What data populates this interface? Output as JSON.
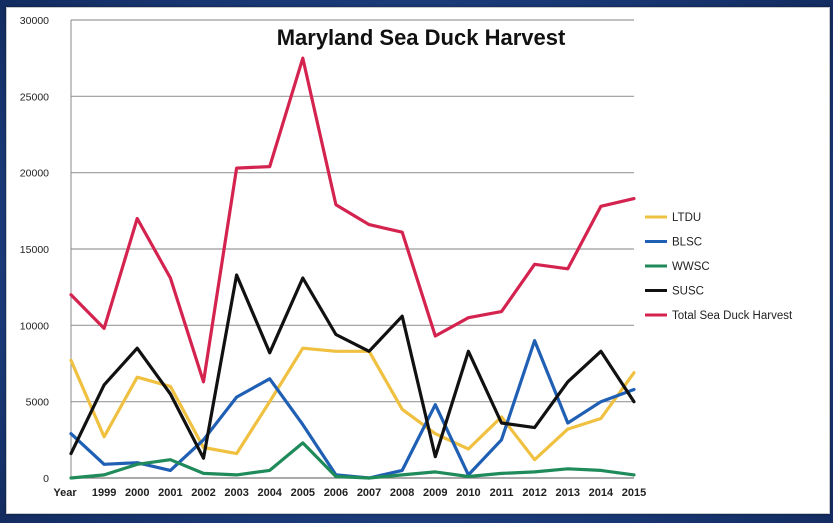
{
  "chart_data": {
    "type": "line",
    "title": "Maryland Sea Duck Harvest",
    "xlabel": "",
    "ylabel": "",
    "x_axis_prefix_label": "Year",
    "categories": [
      "1999",
      "2000",
      "2001",
      "2002",
      "2003",
      "2004",
      "2005",
      "2006",
      "2007",
      "2008",
      "2009",
      "2010",
      "2011",
      "2012",
      "2013",
      "2014",
      "2015"
    ],
    "x_first_tick": "1998",
    "y_ticks": [
      0,
      5000,
      10000,
      15000,
      20000,
      25000,
      30000
    ],
    "ylim": [
      0,
      30000
    ],
    "grid": true,
    "legend_position": "right",
    "x": [
      1998,
      1999,
      2000,
      2001,
      2002,
      2003,
      2004,
      2005,
      2006,
      2007,
      2008,
      2009,
      2010,
      2011,
      2012,
      2013,
      2014,
      2015
    ],
    "series": [
      {
        "name": "LTDU",
        "color": "#f0c040",
        "values": [
          7700,
          2700,
          6600,
          6000,
          2000,
          1600,
          5000,
          8500,
          8300,
          8300,
          4500,
          2900,
          1900,
          4000,
          1200,
          3200,
          3900,
          6900
        ]
      },
      {
        "name": "BLSC",
        "color": "#1f5fb4",
        "values": [
          2900,
          900,
          1000,
          500,
          2500,
          5300,
          6500,
          3500,
          200,
          0,
          500,
          4800,
          200,
          2500,
          9000,
          3600,
          5000,
          5800
        ]
      },
      {
        "name": "WWSC",
        "color": "#1f8a5a",
        "values": [
          0,
          200,
          900,
          1200,
          300,
          200,
          500,
          2300,
          100,
          0,
          200,
          400,
          100,
          300,
          400,
          600,
          500,
          200
        ]
      },
      {
        "name": "SUSC",
        "color": "#111111",
        "values": [
          1600,
          6100,
          8500,
          5500,
          1300,
          13300,
          8200,
          13100,
          9400,
          8300,
          10600,
          1400,
          8300,
          3600,
          3300,
          6300,
          8300,
          5000
        ]
      },
      {
        "name": "Total Sea Duck Harvest",
        "color": "#d4234f",
        "values": [
          12000,
          9800,
          17000,
          13100,
          6300,
          20300,
          20400,
          27500,
          17900,
          16600,
          16100,
          9300,
          10500,
          10900,
          14000,
          13700,
          17800,
          18300
        ]
      }
    ]
  }
}
